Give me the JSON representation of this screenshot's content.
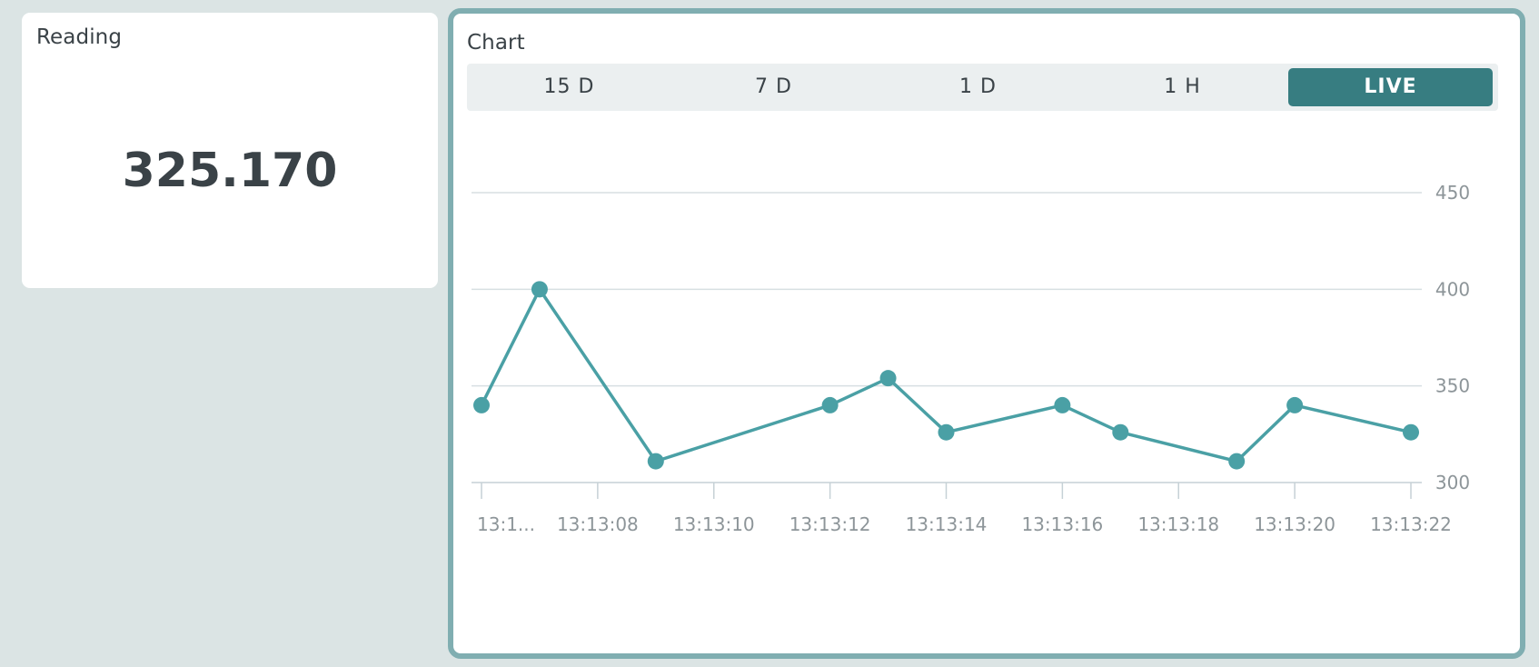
{
  "reading": {
    "title": "Reading",
    "value": "325.170"
  },
  "chart_widget": {
    "title": "Chart",
    "ranges": [
      {
        "label": "15 D",
        "active": false
      },
      {
        "label": "7 D",
        "active": false
      },
      {
        "label": "1 D",
        "active": false
      },
      {
        "label": "1 H",
        "active": false
      },
      {
        "label": "LIVE",
        "active": true
      }
    ]
  },
  "colors": {
    "accent": "#377d81",
    "series": "#4aa0a5",
    "card_border": "#80aeb1",
    "background": "#dbe4e4"
  },
  "chart_data": {
    "type": "line",
    "title": "",
    "xlabel": "",
    "ylabel": "",
    "ylim": [
      300,
      450
    ],
    "y_ticks": [
      "300",
      "350",
      "400",
      "450"
    ],
    "y_tick_values": [
      300,
      350,
      400,
      450
    ],
    "x_tick_labels": [
      "13:1...",
      "13:13:08",
      "13:13:10",
      "13:13:12",
      "13:13:14",
      "13:13:16",
      "13:13:18",
      "13:13:20",
      "13:13:22"
    ],
    "x_tick_times": [
      6,
      8,
      10,
      12,
      14,
      16,
      18,
      20,
      22
    ],
    "xlim": [
      6,
      22
    ],
    "axis_position": "right",
    "grid": true,
    "series": [
      {
        "x": [
          "13:13:06",
          "13:13:07",
          "13:13:09",
          "13:13:12",
          "13:13:13",
          "13:13:14",
          "13:13:16",
          "13:13:17",
          "13:13:19",
          "13:13:20",
          "13:13:22"
        ],
        "x_seconds": [
          6,
          7,
          9,
          12,
          13,
          14,
          16,
          17,
          19,
          20,
          22
        ],
        "values": [
          340,
          400,
          311,
          340,
          354,
          326,
          340,
          326,
          311,
          340,
          326
        ]
      }
    ]
  }
}
